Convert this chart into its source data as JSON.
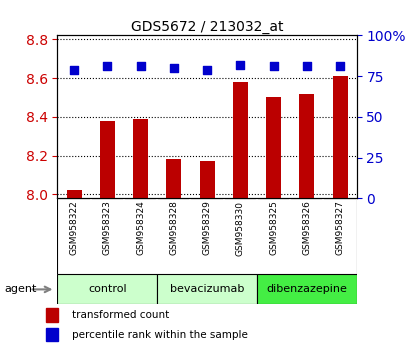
{
  "title": "GDS5672 / 213032_at",
  "samples": [
    "GSM958322",
    "GSM958323",
    "GSM958324",
    "GSM958328",
    "GSM958329",
    "GSM958330",
    "GSM958325",
    "GSM958326",
    "GSM958327"
  ],
  "bar_values": [
    8.02,
    8.38,
    8.39,
    8.18,
    8.17,
    8.58,
    8.5,
    8.52,
    8.61
  ],
  "dot_values": [
    79,
    81,
    81,
    80,
    79,
    82,
    81,
    81,
    81
  ],
  "ylim_left": [
    7.98,
    8.82
  ],
  "ylim_right": [
    0,
    100
  ],
  "yticks_left": [
    8.0,
    8.2,
    8.4,
    8.6,
    8.8
  ],
  "yticks_right": [
    0,
    25,
    50,
    75,
    100
  ],
  "ytick_right_labels": [
    "0",
    "25",
    "50",
    "75",
    "100%"
  ],
  "bar_color": "#bb0000",
  "dot_color": "#0000cc",
  "group_defs": [
    {
      "label": "control",
      "start": 0,
      "end": 2,
      "color": "#ccffcc"
    },
    {
      "label": "bevacizumab",
      "start": 3,
      "end": 5,
      "color": "#ccffcc"
    },
    {
      "label": "dibenzazepine",
      "start": 6,
      "end": 8,
      "color": "#44ee44"
    }
  ],
  "legend_bar_label": "transformed count",
  "legend_dot_label": "percentile rank within the sample",
  "agent_label": "agent",
  "background_color": "#ffffff",
  "tick_label_color_left": "#cc0000",
  "tick_label_color_right": "#0000cc",
  "sample_bg_color": "#cccccc",
  "bar_width": 0.45,
  "dot_size": 30
}
